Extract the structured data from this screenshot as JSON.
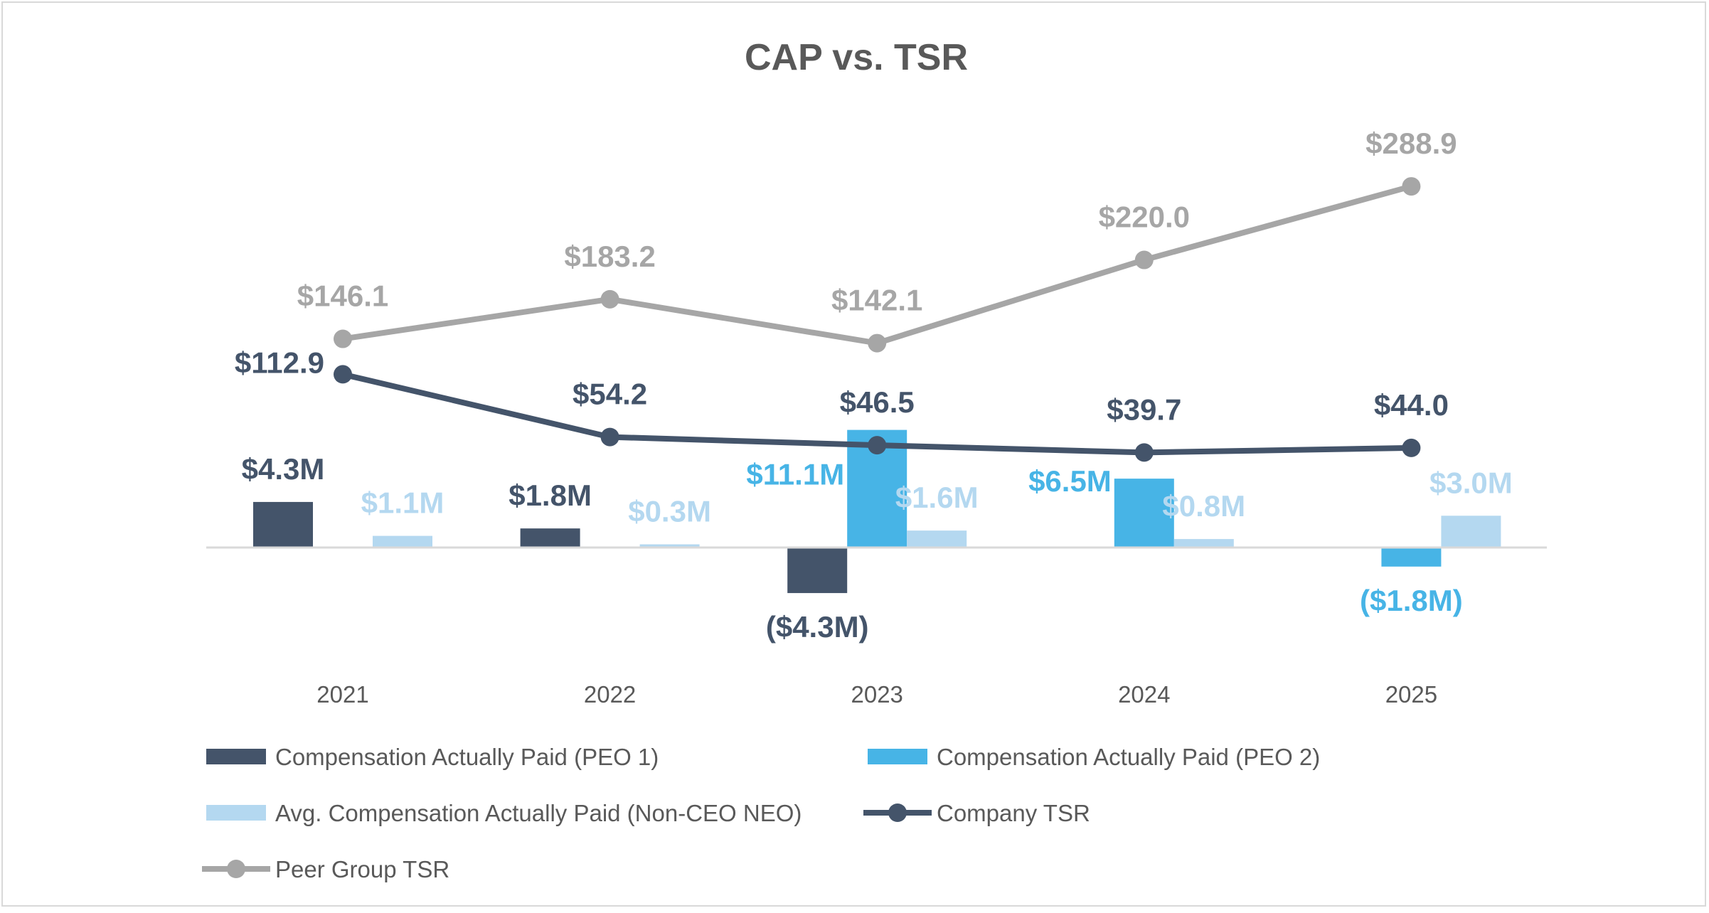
{
  "chart_data": {
    "type": "bar+line",
    "title": "CAP vs. TSR",
    "categories": [
      "2021",
      "2022",
      "2023",
      "2024",
      "2025"
    ],
    "bar_series": [
      {
        "name": "Compensation Actually Paid (PEO 1)",
        "unit": "$M",
        "values": [
          4.3,
          1.8,
          -4.3,
          null,
          null
        ],
        "labels": [
          "$4.3M",
          "$1.8M",
          "($4.3M)",
          "",
          ""
        ],
        "color": "#44546A"
      },
      {
        "name": "Compensation Actually Paid (PEO 2)",
        "unit": "$M",
        "values": [
          null,
          null,
          11.1,
          6.5,
          -1.8
        ],
        "labels": [
          "",
          "",
          "$11.1M",
          "$6.5M",
          "($1.8M)"
        ],
        "color": "#47B4E6"
      },
      {
        "name": "Avg. Compensation Actually Paid (Non-CEO NEO)",
        "unit": "$M",
        "values": [
          1.1,
          0.3,
          1.6,
          0.8,
          3.0
        ],
        "labels": [
          "$1.1M",
          "$0.3M",
          "$1.6M",
          "$0.8M",
          "$3.0M"
        ],
        "color": "#B4D8F0"
      }
    ],
    "line_series": [
      {
        "name": "Company TSR",
        "values": [
          112.9,
          54.2,
          46.5,
          39.7,
          44.0
        ],
        "labels": [
          "$112.9",
          "$54.2",
          "$46.5",
          "$39.7",
          "$44.0"
        ],
        "color": "#44546A"
      },
      {
        "name": "Peer Group TSR",
        "values": [
          146.1,
          183.2,
          142.1,
          220.0,
          288.9
        ],
        "labels": [
          "$146.1",
          "$183.2",
          "$142.1",
          "$220.0",
          "$288.9"
        ],
        "color": "#A6A6A6"
      }
    ],
    "grid": false,
    "axes_visible": false,
    "legend_position": "bottom"
  }
}
